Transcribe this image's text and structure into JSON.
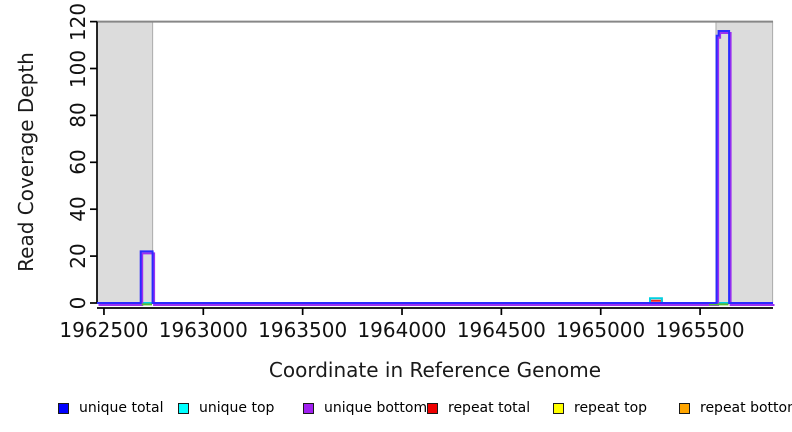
{
  "chart_data": {
    "type": "line",
    "subtype": "step-coverage",
    "title": "",
    "xlabel": "Coordinate in Reference Genome",
    "ylabel": "Read Coverage Depth",
    "xlim": [
      1962465,
      1965867
    ],
    "ylim": [
      0,
      120
    ],
    "x_ticks": [
      1962500,
      1963000,
      1963500,
      1964000,
      1964500,
      1965000,
      1965500
    ],
    "y_ticks": [
      0,
      20,
      40,
      60,
      80,
      100,
      120
    ],
    "grid": false,
    "frame_color": "#878787",
    "axis_color": "#000000",
    "shaded_regions": [
      {
        "x0": 1962465,
        "x1": 1962745,
        "fill": "#dcdcdc",
        "border": "#ababab"
      },
      {
        "x0": 1965580,
        "x1": 1965865,
        "fill": "#dcdcdc",
        "border": "#ababab"
      }
    ],
    "series": [
      {
        "name": "repeat top",
        "color": "#eded00",
        "points": [
          [
            1962465,
            0
          ],
          [
            1965867,
            0
          ]
        ]
      },
      {
        "name": "repeat bottom",
        "color": "#ffa500",
        "points": [
          [
            1962465,
            0
          ],
          [
            1965867,
            0
          ]
        ]
      },
      {
        "name": "repeat total",
        "color": "#ee2222",
        "points": [
          [
            1962465,
            0
          ],
          [
            1965248,
            0
          ],
          [
            1965248,
            1
          ],
          [
            1965308,
            1
          ],
          [
            1965308,
            0
          ],
          [
            1965867,
            0
          ]
        ]
      },
      {
        "name": "unique top",
        "color": "#00d0e0",
        "points": [
          [
            1962465,
            0
          ],
          [
            1965248,
            0
          ],
          [
            1965248,
            2
          ],
          [
            1965308,
            2
          ],
          [
            1965308,
            0
          ],
          [
            1965867,
            0
          ]
        ]
      },
      {
        "name": "unique bottom",
        "color": "#9b30f0",
        "points": [
          [
            1962465,
            0
          ],
          [
            1962685,
            0
          ],
          [
            1962685,
            22
          ],
          [
            1962745,
            22
          ],
          [
            1962745,
            0
          ],
          [
            1965583,
            0
          ],
          [
            1965583,
            114
          ],
          [
            1965593,
            114
          ],
          [
            1965593,
            116
          ],
          [
            1965646,
            116
          ],
          [
            1965646,
            0
          ],
          [
            1965867,
            0
          ]
        ]
      },
      {
        "name": "unique total",
        "color": "#2a2aff",
        "points": [
          [
            1962465,
            0
          ],
          [
            1962685,
            0
          ],
          [
            1962685,
            22
          ],
          [
            1962745,
            22
          ],
          [
            1962745,
            0
          ],
          [
            1965583,
            0
          ],
          [
            1965583,
            114
          ],
          [
            1965593,
            114
          ],
          [
            1965593,
            116
          ],
          [
            1965646,
            116
          ],
          [
            1965646,
            0
          ],
          [
            1965867,
            0
          ]
        ]
      }
    ],
    "overlap_segments": [
      {
        "x0": 1962690,
        "x1": 1962742,
        "y": 0,
        "color": "#55bb33"
      },
      {
        "x0": 1965545,
        "x1": 1965643,
        "y": 0,
        "color": "#55bb33"
      }
    ],
    "legend_position": "bottom"
  },
  "legend": {
    "items": [
      {
        "label": "unique total",
        "color": "#0000ff"
      },
      {
        "label": "unique top",
        "color": "#00ffff"
      },
      {
        "label": "unique bottom",
        "color": "#a020f0"
      },
      {
        "label": "repeat total",
        "color": "#ee0000"
      },
      {
        "label": "repeat top",
        "color": "#ffff00"
      },
      {
        "label": "repeat bottom",
        "color": "#ffa500"
      }
    ]
  }
}
